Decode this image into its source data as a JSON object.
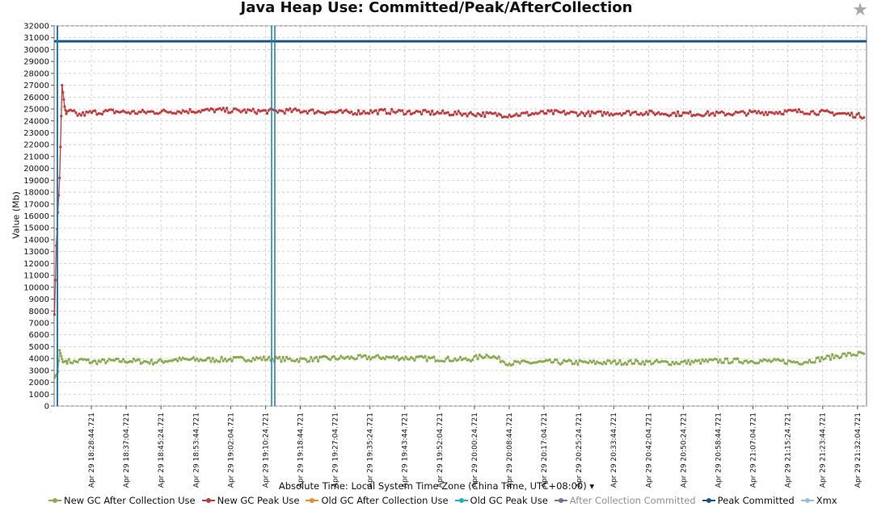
{
  "chart_data": {
    "type": "line",
    "title": "Java Heap Use: Committed/Peak/AfterCollection",
    "ylabel": "Value (Mb)",
    "xlabel": "Absolute Time: Local System Time Zone (China Time, UTC+08:00)",
    "xlabel_dropdown": "▾",
    "ylim": [
      0,
      32000
    ],
    "yticks": [
      0,
      1000,
      2000,
      3000,
      4000,
      5000,
      6000,
      7000,
      8000,
      9000,
      10000,
      11000,
      12000,
      13000,
      14000,
      15000,
      16000,
      17000,
      18000,
      19000,
      20000,
      21000,
      22000,
      23000,
      24000,
      25000,
      26000,
      27000,
      28000,
      29000,
      30000,
      31000,
      32000
    ],
    "x_tick_labels": [
      "Apr 29 18:28:44.721",
      "Apr 29 18:37:04.721",
      "Apr 29 18:45:24.721",
      "Apr 29 18:53:44.721",
      "Apr 29 19:02:04.721",
      "Apr 29 19:10:24.721",
      "Apr 29 19:18:44.721",
      "Apr 29 19:27:04.721",
      "Apr 29 19:35:24.721",
      "Apr 29 19:43:44.721",
      "Apr 29 19:52:04.721",
      "Apr 29 20:00:24.721",
      "Apr 29 20:08:44.721",
      "Apr 29 20:17:04.721",
      "Apr 29 20:25:24.721",
      "Apr 29 20:33:44.721",
      "Apr 29 20:42:04.721",
      "Apr 29 20:50:24.721",
      "Apr 29 20:58:44.721",
      "Apr 29 21:07:04.721",
      "Apr 29 21:15:24.721",
      "Apr 29 21:23:44.721",
      "Apr 29 21:32:04.721"
    ],
    "x_range_minutes_from_first_tick": [
      -8.9,
      9.2
    ],
    "grid": true,
    "legend_position": "bottom",
    "cursor_time": "Apr 29 19:15:00",
    "series": [
      {
        "name": "New GC After Collection Use",
        "color": "#8aac4e",
        "enabled": true,
        "time_minutes": [
          -8.8,
          -8.6,
          -8.4,
          -8.2,
          -8.0,
          -7.6,
          -7.2,
          -6.8,
          -6.0,
          -4.0,
          -2.0,
          0,
          5,
          10,
          15,
          20,
          30,
          40,
          50,
          60,
          70,
          80,
          90,
          95,
          100,
          110,
          120,
          130,
          140,
          150,
          160,
          170,
          180,
          185
        ],
        "values": [
          2400,
          2550,
          2600,
          2700,
          2900,
          4700,
          4200,
          3700,
          3800,
          3700,
          3900,
          3700,
          3800,
          3800,
          3700,
          3900,
          3900,
          4000,
          3900,
          4050,
          4100,
          4000,
          3900,
          4300,
          3600,
          3700,
          3650,
          3700,
          3650,
          3800,
          3800,
          3700,
          4300,
          4400
        ]
      },
      {
        "name": "New GC Peak Use",
        "color": "#c83a3a",
        "enabled": true,
        "time_minutes": [
          -8.8,
          -8.6,
          -8.4,
          -8.0,
          -7.6,
          -7.3,
          -7.0,
          -6.7,
          -6.4,
          -6.0,
          -5.0,
          -3.0,
          0,
          5,
          10,
          20,
          30,
          40,
          50,
          60,
          70,
          80,
          90,
          100,
          110,
          120,
          130,
          140,
          150,
          160,
          170,
          180,
          185
        ],
        "values": [
          7700,
          10600,
          13500,
          16300,
          19200,
          23100,
          27000,
          26100,
          25200,
          24600,
          24800,
          24500,
          24700,
          24800,
          24700,
          24800,
          24900,
          24800,
          24850,
          24700,
          24800,
          24700,
          24600,
          24500,
          24700,
          24600,
          24700,
          24600,
          24600,
          24700,
          24800,
          24600,
          24400
        ]
      },
      {
        "name": "Old GC After Collection Use",
        "color": "#f0892c",
        "enabled": true,
        "time_minutes": [],
        "values": []
      },
      {
        "name": "Old GC Peak Use",
        "color": "#19b1c3",
        "enabled": true,
        "time_minutes": [],
        "values": []
      },
      {
        "name": "After Collection Committed",
        "color": "#7a6aa0",
        "enabled": false,
        "time_minutes": [],
        "values": []
      },
      {
        "name": "Peak Committed",
        "color": "#1a5587",
        "enabled": true,
        "time_minutes": [
          -8.9,
          185
        ],
        "values": [
          30700,
          30700
        ]
      },
      {
        "name": "Xmx",
        "color": "#9abfd9",
        "enabled": true,
        "time_minutes": [],
        "values": []
      }
    ]
  }
}
